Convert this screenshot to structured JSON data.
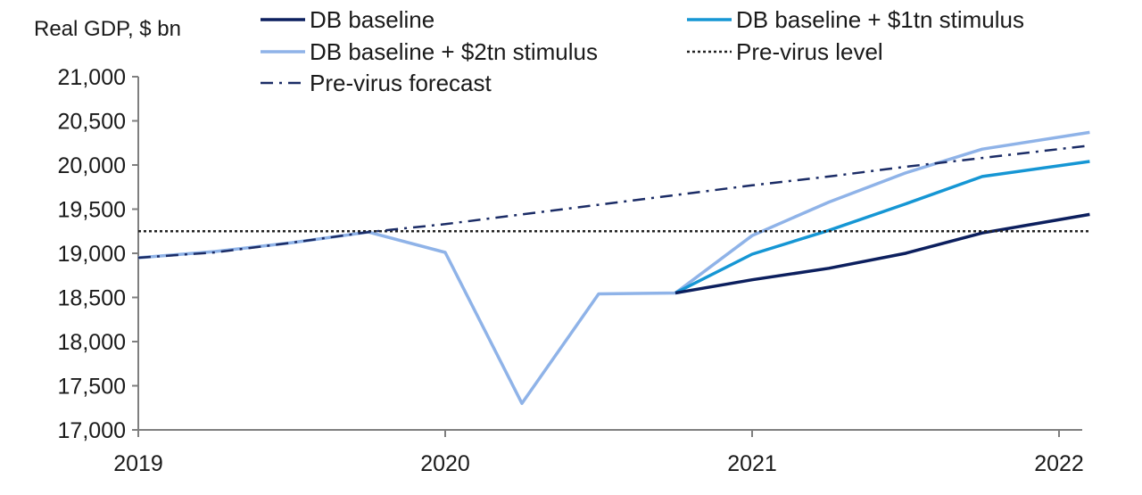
{
  "chart_data": {
    "type": "line",
    "ylabel": "Real GDP, $ bn",
    "xlabel": "",
    "ylim": [
      17000,
      21000
    ],
    "xlim": [
      2019.0,
      2022.1
    ],
    "y_ticks": [
      "17,000",
      "17,500",
      "18,000",
      "18,500",
      "19,000",
      "19,500",
      "20,000",
      "20,500",
      "21,000"
    ],
    "y_tick_values": [
      17000,
      17500,
      18000,
      18500,
      19000,
      19500,
      20000,
      20500,
      21000
    ],
    "x_ticks": [
      "2019",
      "2020",
      "2021",
      "2022"
    ],
    "x_tick_values": [
      2019,
      2020,
      2021,
      2022
    ],
    "grid": false,
    "legend_position": "top",
    "series": [
      {
        "name": "DB baseline + $2tn stimulus",
        "color": "#8fb3e8",
        "style": "solid",
        "x": [
          2019.0,
          2019.25,
          2019.5,
          2019.75,
          2020.0,
          2020.25,
          2020.5,
          2020.75,
          2021.0,
          2021.25,
          2021.5,
          2021.75,
          2022.1
        ],
        "y": [
          18950,
          19020,
          19120,
          19240,
          19010,
          17300,
          18540,
          18550,
          19200,
          19580,
          19910,
          20180,
          20370
        ]
      },
      {
        "name": "DB baseline + $1tn stimulus",
        "color": "#1596d4",
        "style": "solid",
        "x": [
          2020.75,
          2021.0,
          2021.25,
          2021.5,
          2021.75,
          2022.1
        ],
        "y": [
          18550,
          18990,
          19260,
          19560,
          19870,
          20040
        ]
      },
      {
        "name": "DB baseline",
        "color": "#0c1f5e",
        "style": "solid",
        "x": [
          2020.75,
          2021.0,
          2021.25,
          2021.5,
          2021.75,
          2022.1
        ],
        "y": [
          18550,
          18700,
          18830,
          19000,
          19230,
          19440
        ]
      },
      {
        "name": "Pre-virus level",
        "color": "#222222",
        "style": "dotted",
        "x": [
          2019.0,
          2022.1
        ],
        "y": [
          19250,
          19250
        ]
      },
      {
        "name": "Pre-virus forecast",
        "color": "#1b2c66",
        "style": "dashdot",
        "x": [
          2019.0,
          2019.25,
          2019.5,
          2019.75,
          2020.0,
          2020.25,
          2020.5,
          2020.75,
          2021.0,
          2021.25,
          2021.5,
          2021.75,
          2022.1
        ],
        "y": [
          18950,
          19010,
          19120,
          19240,
          19330,
          19440,
          19550,
          19660,
          19770,
          19870,
          19980,
          20080,
          20220
        ]
      }
    ],
    "legend": [
      {
        "label": "DB baseline",
        "color": "#0c1f5e",
        "style": "solid"
      },
      {
        "label": "DB baseline + $1tn stimulus",
        "color": "#1596d4",
        "style": "solid"
      },
      {
        "label": "DB baseline + $2tn stimulus",
        "color": "#8fb3e8",
        "style": "solid"
      },
      {
        "label": "Pre-virus level",
        "color": "#222222",
        "style": "dotted"
      },
      {
        "label": "Pre-virus forecast",
        "color": "#1b2c66",
        "style": "dashdot"
      }
    ]
  }
}
